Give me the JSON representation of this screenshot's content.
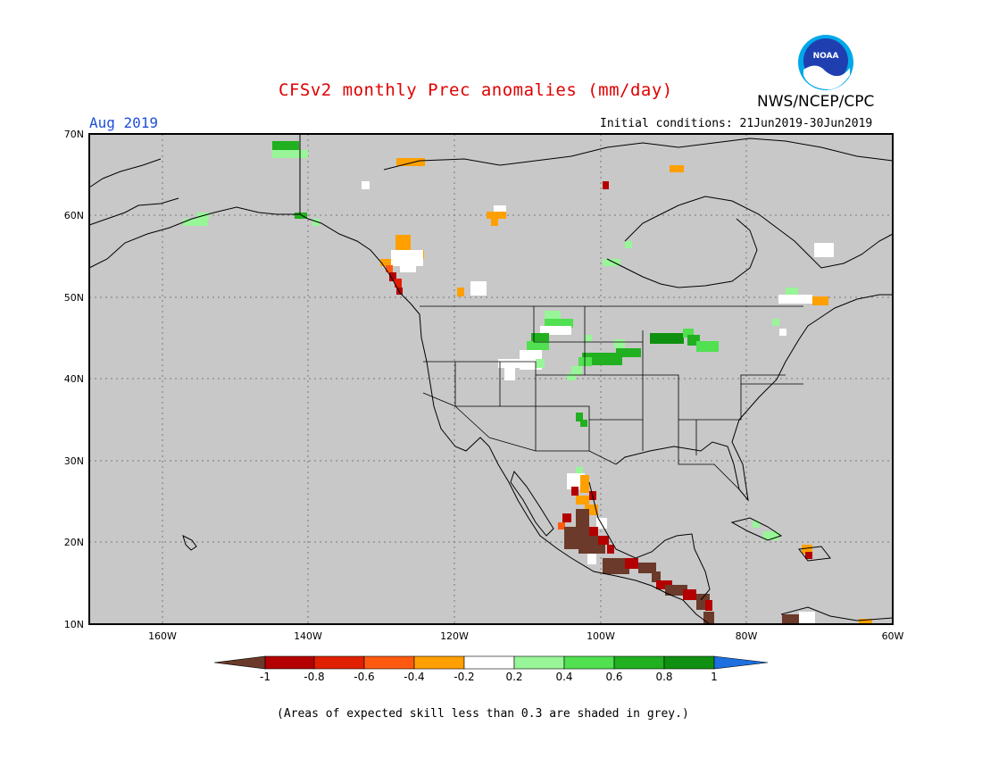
{
  "title": "CFSv2 monthly Prec anomalies (mm/day)",
  "month": "Aug 2019",
  "initial_conditions": "Initial conditions: 21Jun2019-30Jun2019",
  "org": "NWS/NCEP/CPC",
  "logo_text": "NOAA",
  "footnote": "(Areas of expected skill less than 0.3 are shaded in grey.)",
  "map": {
    "lon_range": [
      -170,
      -60
    ],
    "lat_range": [
      10,
      70
    ],
    "lat_labels": [
      "70N",
      "60N",
      "50N",
      "40N",
      "30N",
      "20N",
      "10N"
    ],
    "lon_labels": [
      "160W",
      "140W",
      "120W",
      "100W",
      "80W",
      "60W"
    ],
    "background_color": "#c8c8c8",
    "grid": true
  },
  "colorbar": {
    "labels": [
      "-1",
      "-0.8",
      "-0.6",
      "-0.4",
      "-0.2",
      "0.2",
      "0.4",
      "0.6",
      "0.8",
      "1"
    ],
    "colors": [
      "#6b3a2a",
      "#b40000",
      "#e02000",
      "#ff5a10",
      "#ffa000",
      "#ffffff",
      "#98f598",
      "#50e050",
      "#20b020",
      "#109010",
      "#1e6fe0"
    ]
  }
}
